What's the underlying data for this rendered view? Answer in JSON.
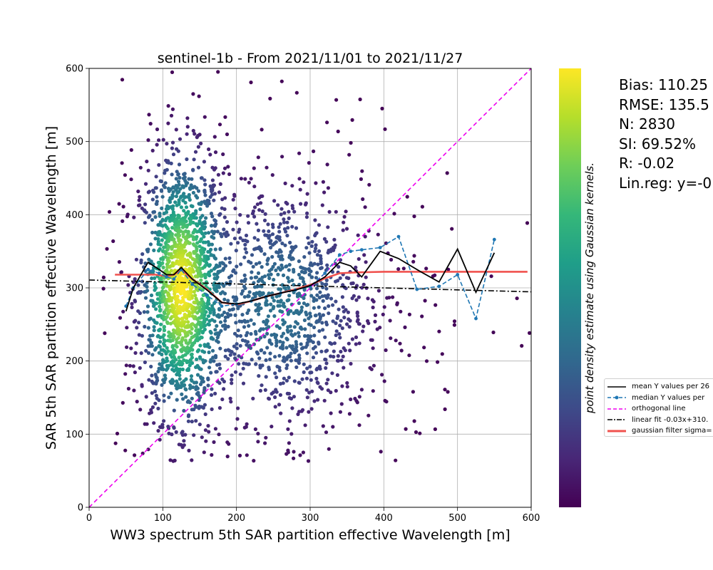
{
  "chart_data": {
    "type": "scatter",
    "title": "sentinel-1b - From 2021/11/01 to 2021/11/27",
    "xlabel": "WW3 spectrum 5th SAR partition effective Wavelength [m]",
    "ylabel": "SAR 5th SAR partition effective Wavelength [m]",
    "xlim": [
      0,
      600
    ],
    "ylim": [
      0,
      600
    ],
    "xticks": [
      "0",
      "100",
      "200",
      "300",
      "400",
      "500",
      "600"
    ],
    "yticks": [
      "0",
      "100",
      "200",
      "300",
      "400",
      "500",
      "600"
    ],
    "grid": true,
    "colorbar_label": "point density estimate using Gaussian kernels.",
    "colormap": [
      "#440154",
      "#482777",
      "#3e4a89",
      "#31688e",
      "#26828e",
      "#1f9e89",
      "#35b779",
      "#6ece58",
      "#b5de2b",
      "#fde725"
    ],
    "scatter_point_count": 2830,
    "density_clusters": [
      {
        "x": 125,
        "y": 300,
        "sx": 28,
        "sy": 90,
        "weight": 0.55
      },
      {
        "x": 260,
        "y": 280,
        "sx": 60,
        "sy": 80,
        "weight": 0.3
      },
      {
        "x": 250,
        "y": 250,
        "sx": 140,
        "sy": 160,
        "weight": 0.15
      }
    ],
    "series": [
      {
        "name": "mean Y values per 26",
        "color": "#000000",
        "style": "solid",
        "x": [
          50,
          60,
          80,
          95,
          105,
          115,
          125,
          140,
          160,
          180,
          200,
          220,
          240,
          260,
          280,
          300,
          320,
          340,
          355,
          370,
          395,
          420,
          450,
          475,
          500,
          525,
          550
        ],
        "y": [
          268,
          300,
          335,
          325,
          318,
          318,
          328,
          312,
          297,
          280,
          278,
          282,
          288,
          293,
          297,
          303,
          315,
          335,
          330,
          315,
          350,
          340,
          322,
          308,
          353,
          294,
          348
        ]
      },
      {
        "name": "median Y values per",
        "color": "#1f77b4",
        "style": "dashed-marker",
        "x": [
          50,
          60,
          80,
          95,
          105,
          115,
          125,
          140,
          160,
          180,
          200,
          220,
          240,
          260,
          280,
          300,
          320,
          340,
          355,
          370,
          395,
          420,
          445,
          475,
          500,
          525,
          550
        ],
        "y": [
          275,
          300,
          325,
          320,
          315,
          312,
          325,
          305,
          290,
          275,
          278,
          282,
          288,
          293,
          297,
          302,
          320,
          345,
          350,
          352,
          355,
          370,
          298,
          302,
          318,
          258,
          366
        ]
      },
      {
        "name": "orthogonal line",
        "color": "#ee00ee",
        "style": "dashed",
        "x": [
          0,
          600
        ],
        "y": [
          0,
          600
        ]
      },
      {
        "name": "linear fit -0.03x+310.",
        "color": "#000000",
        "style": "dashdot",
        "x": [
          0,
          600
        ],
        "y": [
          310.7,
          294.5
        ]
      },
      {
        "name": "gaussian filter sigma=",
        "color": "#f0524e",
        "style": "thick",
        "x": [
          35,
          70,
          90,
          105,
          115,
          125,
          140,
          160,
          180,
          200,
          220,
          240,
          260,
          280,
          300,
          320,
          340,
          360,
          400,
          450,
          500,
          550,
          595
        ],
        "y": [
          318,
          318,
          318,
          316,
          318,
          325,
          312,
          298,
          280,
          277,
          282,
          288,
          293,
          298,
          304,
          313,
          320,
          321,
          322,
          322,
          322,
          322,
          322
        ]
      }
    ],
    "legend_position": "lower-right outside"
  },
  "stats": {
    "bias": "Bias: 110.25",
    "rmse": "RMSE: 135.5",
    "n": "N: 2830",
    "si": "SI: 69.52%",
    "r": "R: -0.02",
    "linreg": "Lin.reg: y=-0"
  }
}
